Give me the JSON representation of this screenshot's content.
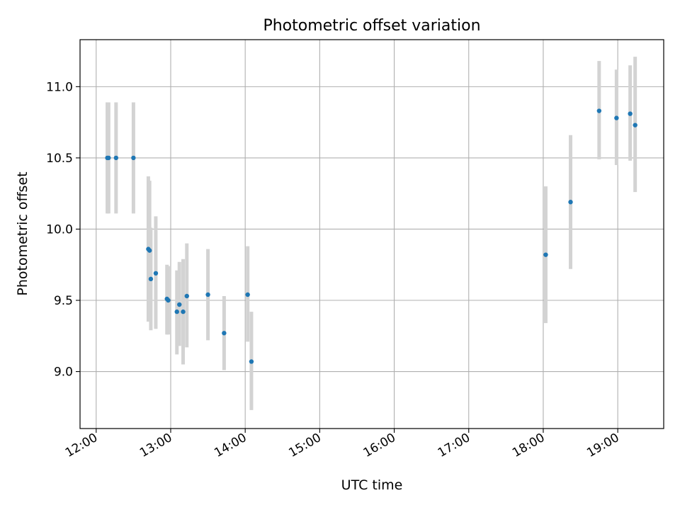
{
  "chart_data": {
    "type": "scatter",
    "title": "Photometric offset variation",
    "xlabel": "UTC time",
    "ylabel": "Photometric offset",
    "xlim": [
      "11:47",
      "19:37"
    ],
    "ylim": [
      8.6,
      11.33
    ],
    "x_ticks": [
      "12:00",
      "13:00",
      "14:00",
      "15:00",
      "16:00",
      "17:00",
      "18:00",
      "19:00"
    ],
    "y_ticks": [
      "9.0",
      "9.5",
      "10.0",
      "10.5",
      "11.0"
    ],
    "grid": true,
    "colors": {
      "point": "#1f77b4",
      "error_bar": "#d3d3d3",
      "grid": "#b0b0b0"
    },
    "points": [
      {
        "x": "12:09",
        "y": 10.5,
        "err_low": 10.11,
        "err_high": 10.89
      },
      {
        "x": "12:10",
        "y": 10.5,
        "err_low": 10.11,
        "err_high": 10.89
      },
      {
        "x": "12:16",
        "y": 10.5,
        "err_low": 10.11,
        "err_high": 10.89
      },
      {
        "x": "12:30",
        "y": 10.5,
        "err_low": 10.11,
        "err_high": 10.89
      },
      {
        "x": "12:42",
        "y": 9.86,
        "err_low": 9.35,
        "err_high": 10.37
      },
      {
        "x": "12:43",
        "y": 9.85,
        "err_low": 9.36,
        "err_high": 10.34
      },
      {
        "x": "12:44",
        "y": 9.65,
        "err_low": 9.29,
        "err_high": 10.01
      },
      {
        "x": "12:48",
        "y": 9.69,
        "err_low": 9.3,
        "err_high": 10.09
      },
      {
        "x": "12:57",
        "y": 9.51,
        "err_low": 9.26,
        "err_high": 9.75
      },
      {
        "x": "12:58",
        "y": 9.5,
        "err_low": 9.26,
        "err_high": 9.74
      },
      {
        "x": "13:05",
        "y": 9.42,
        "err_low": 9.12,
        "err_high": 9.71
      },
      {
        "x": "13:07",
        "y": 9.47,
        "err_low": 9.18,
        "err_high": 9.77
      },
      {
        "x": "13:10",
        "y": 9.42,
        "err_low": 9.05,
        "err_high": 9.79
      },
      {
        "x": "13:13",
        "y": 9.53,
        "err_low": 9.17,
        "err_high": 9.9
      },
      {
        "x": "13:30",
        "y": 9.54,
        "err_low": 9.22,
        "err_high": 9.86
      },
      {
        "x": "13:43",
        "y": 9.27,
        "err_low": 9.01,
        "err_high": 9.53
      },
      {
        "x": "14:02",
        "y": 9.54,
        "err_low": 9.21,
        "err_high": 9.88
      },
      {
        "x": "14:05",
        "y": 9.07,
        "err_low": 8.73,
        "err_high": 9.42
      },
      {
        "x": "18:02",
        "y": 9.82,
        "err_low": 9.34,
        "err_high": 10.3
      },
      {
        "x": "18:22",
        "y": 10.19,
        "err_low": 9.72,
        "err_high": 10.66
      },
      {
        "x": "18:45",
        "y": 10.83,
        "err_low": 10.49,
        "err_high": 11.18
      },
      {
        "x": "18:59",
        "y": 10.78,
        "err_low": 10.45,
        "err_high": 11.12
      },
      {
        "x": "19:10",
        "y": 10.81,
        "err_low": 10.48,
        "err_high": 11.15
      },
      {
        "x": "19:14",
        "y": 10.73,
        "err_low": 10.26,
        "err_high": 11.21
      }
    ]
  }
}
